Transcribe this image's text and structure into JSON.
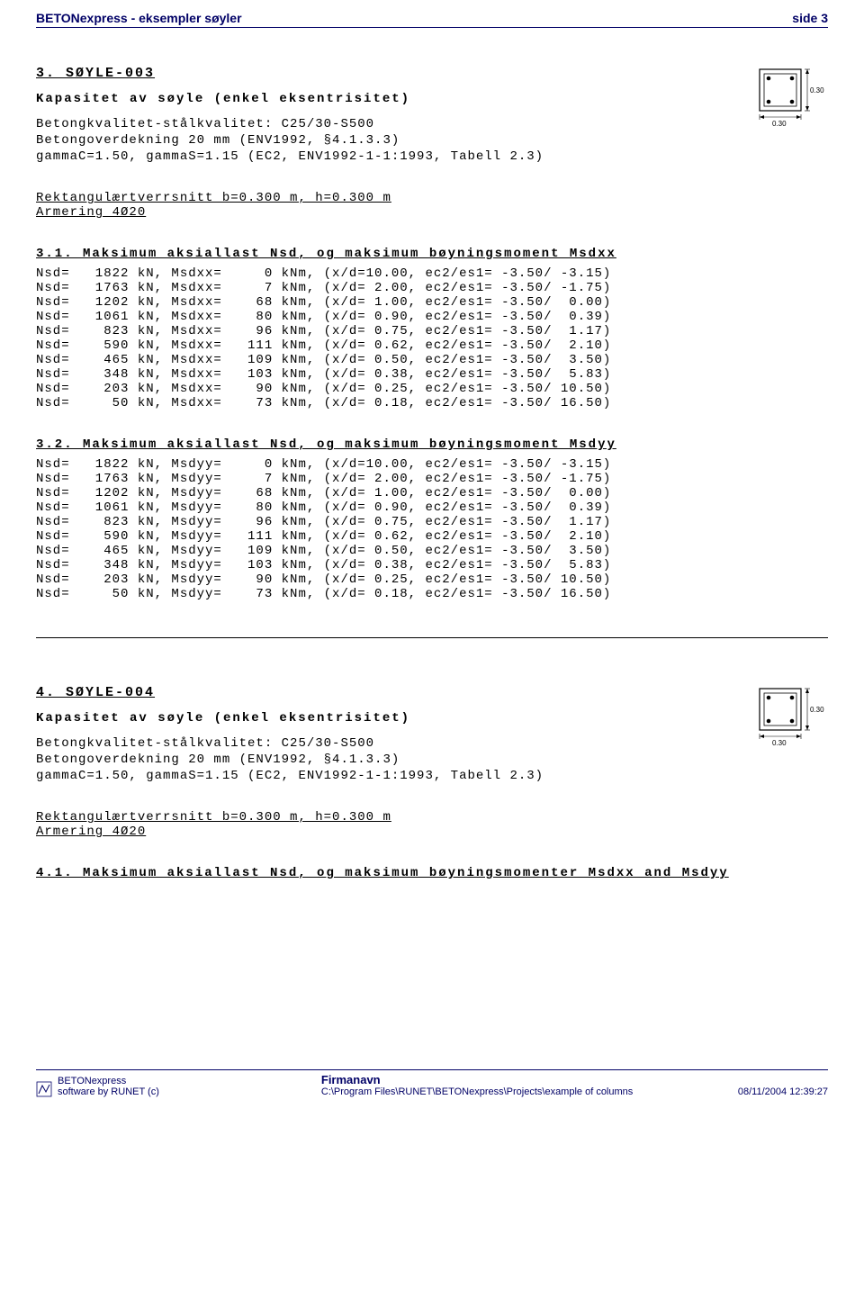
{
  "header": {
    "left": "BETONexpress - eksempler søyler",
    "right": "side 3"
  },
  "section3": {
    "title": "3. SØYLE-003",
    "subtitle": "Kapasitet av søyle (enkel eksentrisitet)",
    "meta1": "Betongkvalitet-stålkvalitet: C25/30-S500",
    "meta2": "Betongoverdekning 20 mm (ENV1992, §4.1.3.3)",
    "meta3": "gammaC=1.50, gammaS=1.15 (EC2, ENV1992-1-1:1993, Tabell 2.3)",
    "rect1": "Rektangulærtverrsnitt b=0.300 m, h=0.300 m",
    "rect2": "Armering 4Ø20",
    "block31": {
      "head": "3.1. Maksimum aksiallast Nsd, og maksimum bøyningsmoment Msdxx",
      "rows": [
        "Nsd=   1822 kN, Msdxx=     0 kNm, (x/d=10.00, ec2/es1= -3.50/ -3.15)",
        "Nsd=   1763 kN, Msdxx=     7 kNm, (x/d= 2.00, ec2/es1= -3.50/ -1.75)",
        "Nsd=   1202 kN, Msdxx=    68 kNm, (x/d= 1.00, ec2/es1= -3.50/  0.00)",
        "Nsd=   1061 kN, Msdxx=    80 kNm, (x/d= 0.90, ec2/es1= -3.50/  0.39)",
        "Nsd=    823 kN, Msdxx=    96 kNm, (x/d= 0.75, ec2/es1= -3.50/  1.17)",
        "Nsd=    590 kN, Msdxx=   111 kNm, (x/d= 0.62, ec2/es1= -3.50/  2.10)",
        "Nsd=    465 kN, Msdxx=   109 kNm, (x/d= 0.50, ec2/es1= -3.50/  3.50)",
        "Nsd=    348 kN, Msdxx=   103 kNm, (x/d= 0.38, ec2/es1= -3.50/  5.83)",
        "Nsd=    203 kN, Msdxx=    90 kNm, (x/d= 0.25, ec2/es1= -3.50/ 10.50)",
        "Nsd=     50 kN, Msdxx=    73 kNm, (x/d= 0.18, ec2/es1= -3.50/ 16.50)"
      ]
    },
    "block32": {
      "head": "3.2. Maksimum aksiallast Nsd, og maksimum bøyningsmoment Msdyy",
      "rows": [
        "Nsd=   1822 kN, Msdyy=     0 kNm, (x/d=10.00, ec2/es1= -3.50/ -3.15)",
        "Nsd=   1763 kN, Msdyy=     7 kNm, (x/d= 2.00, ec2/es1= -3.50/ -1.75)",
        "Nsd=   1202 kN, Msdyy=    68 kNm, (x/d= 1.00, ec2/es1= -3.50/  0.00)",
        "Nsd=   1061 kN, Msdyy=    80 kNm, (x/d= 0.90, ec2/es1= -3.50/  0.39)",
        "Nsd=    823 kN, Msdyy=    96 kNm, (x/d= 0.75, ec2/es1= -3.50/  1.17)",
        "Nsd=    590 kN, Msdyy=   111 kNm, (x/d= 0.62, ec2/es1= -3.50/  2.10)",
        "Nsd=    465 kN, Msdyy=   109 kNm, (x/d= 0.50, ec2/es1= -3.50/  3.50)",
        "Nsd=    348 kN, Msdyy=   103 kNm, (x/d= 0.38, ec2/es1= -3.50/  5.83)",
        "Nsd=    203 kN, Msdyy=    90 kNm, (x/d= 0.25, ec2/es1= -3.50/ 10.50)",
        "Nsd=     50 kN, Msdyy=    73 kNm, (x/d= 0.18, ec2/es1= -3.50/ 16.50)"
      ]
    }
  },
  "section4": {
    "title": "4. SØYLE-004",
    "subtitle": "Kapasitet av søyle (enkel eksentrisitet)",
    "meta1": "Betongkvalitet-stålkvalitet: C25/30-S500",
    "meta2": "Betongoverdekning 20 mm (ENV1992, §4.1.3.3)",
    "meta3": "gammaC=1.50, gammaS=1.15 (EC2, ENV1992-1-1:1993, Tabell 2.3)",
    "rect1": "Rektangulærtverrsnitt b=0.300 m, h=0.300 m",
    "rect2": "Armering 4Ø20",
    "block41head": "4.1. Maksimum aksiallast Nsd, og maksimum bøyningsmomenter Msdxx and Msdyy"
  },
  "diagram": {
    "dim_label": "0.30",
    "stroke": "#000000",
    "fontsize": 8
  },
  "footer": {
    "prod1": "BETONexpress",
    "prod2": "software by RUNET (c)",
    "firm": "Firmanavn",
    "path": "C:\\Program Files\\RUNET\\BETONexpress\\Projects\\example of columns",
    "date": "08/11/2004 12:39:27"
  }
}
